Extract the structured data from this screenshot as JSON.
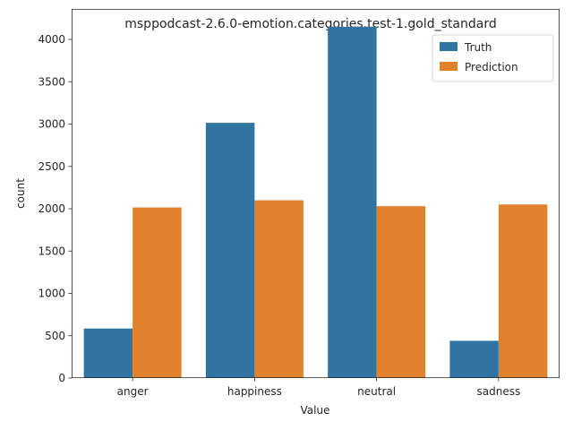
{
  "chart_data": {
    "type": "bar",
    "title": "msppodcast-2.6.0-emotion.categories.test-1.gold_standard",
    "xlabel": "Value",
    "ylabel": "count",
    "categories": [
      "anger",
      "happiness",
      "neutral",
      "sadness"
    ],
    "series": [
      {
        "name": "Truth",
        "color": "#3274a1",
        "values": [
          585,
          3015,
          4150,
          440
        ]
      },
      {
        "name": "Prediction",
        "color": "#e1812c",
        "values": [
          2015,
          2100,
          2030,
          2050
        ]
      }
    ],
    "ylim": [
      0,
      4360
    ],
    "yticks": [
      0,
      500,
      1000,
      1500,
      2000,
      2500,
      3000,
      3500,
      4000
    ],
    "grid": false,
    "legend_position": "top-right"
  }
}
